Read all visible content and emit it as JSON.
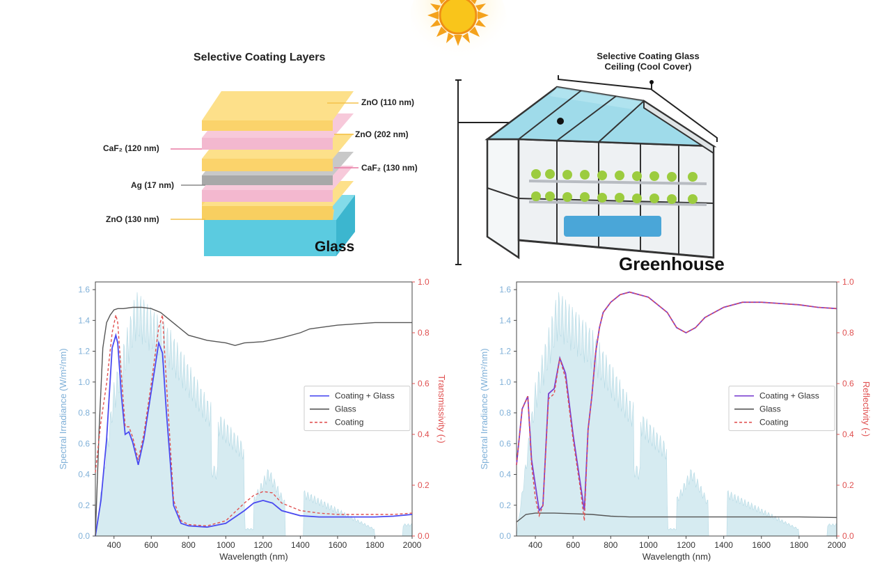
{
  "layers_diagram": {
    "title": "Selective Coating Layers",
    "substrate_label": "Glass",
    "layer_labels": {
      "zno_top": "ZnO (110 nm)",
      "zno_202": "ZnO (202 nm)",
      "caf2_120": "CaF₂ (120 nm)",
      "caf2_130": "CaF₂ (130 nm)",
      "ag": "Ag (17 nm)",
      "zno_130": "ZnO (130 nm)"
    },
    "colors": {
      "zno": "#fbd36b",
      "caf2": "#f3b8cf",
      "ag": "#b3b3b3",
      "glass": "#5bcbe0"
    }
  },
  "greenhouse": {
    "ceiling_label_line1": "Selective Coating Glass",
    "ceiling_label_line2": "Ceiling  (Cool Cover)",
    "title": "Greenhouse"
  },
  "chart_data": [
    {
      "type": "line",
      "xlabel": "Wavelength (nm)",
      "ylabel_left": "Spectral Irradiance (W/m²/nm)",
      "ylabel_right": "Transmissivity (-)",
      "xlim": [
        300,
        2000
      ],
      "ylim_left": [
        0,
        1.65
      ],
      "ylim_right": [
        0,
        1.0
      ],
      "x_ticks": [
        "400",
        "600",
        "800",
        "1000",
        "1200",
        "1400",
        "1600",
        "1800",
        "2000"
      ],
      "y_left_ticks": [
        "0.0",
        "0.2",
        "0.4",
        "0.6",
        "0.8",
        "1.0",
        "1.2",
        "1.4",
        "1.6"
      ],
      "y_right_ticks": [
        "0.0",
        "0.2",
        "0.4",
        "0.6",
        "0.8",
        "1.0"
      ],
      "legend": [
        "Coating + Glass",
        "Glass",
        "Coating"
      ],
      "legend_position": "center-right",
      "series": [
        {
          "name": "Coating + Glass",
          "color": "#4a4af0",
          "x": [
            300,
            330,
            360,
            390,
            410,
            420,
            440,
            460,
            480,
            500,
            530,
            560,
            600,
            640,
            660,
            680,
            720,
            760,
            800,
            900,
            1000,
            1100,
            1150,
            1200,
            1250,
            1300,
            1400,
            1500,
            1600,
            1700,
            1800,
            1900,
            2000
          ],
          "y": [
            0.0,
            0.14,
            0.38,
            0.74,
            0.79,
            0.76,
            0.55,
            0.4,
            0.41,
            0.37,
            0.28,
            0.38,
            0.57,
            0.76,
            0.72,
            0.5,
            0.12,
            0.05,
            0.04,
            0.035,
            0.05,
            0.1,
            0.13,
            0.14,
            0.13,
            0.1,
            0.08,
            0.075,
            0.075,
            0.075,
            0.075,
            0.078,
            0.085
          ]
        },
        {
          "name": "Glass",
          "color": "#555555",
          "x": [
            300,
            320,
            340,
            360,
            380,
            400,
            420,
            450,
            500,
            550,
            600,
            650,
            700,
            800,
            900,
            1000,
            1050,
            1100,
            1200,
            1300,
            1400,
            1450,
            1500,
            1600,
            1700,
            1800,
            1900,
            2000
          ],
          "y": [
            0.0,
            0.42,
            0.74,
            0.84,
            0.87,
            0.89,
            0.895,
            0.895,
            0.9,
            0.9,
            0.895,
            0.88,
            0.85,
            0.79,
            0.77,
            0.76,
            0.75,
            0.76,
            0.765,
            0.78,
            0.8,
            0.815,
            0.82,
            0.83,
            0.835,
            0.84,
            0.84,
            0.84
          ]
        },
        {
          "name": "Coating",
          "color": "#e05050",
          "x": [
            300,
            330,
            360,
            390,
            410,
            420,
            440,
            460,
            480,
            500,
            530,
            560,
            600,
            640,
            660,
            680,
            720,
            760,
            800,
            900,
            1000,
            1100,
            1150,
            1200,
            1250,
            1300,
            1400,
            1500,
            1600,
            1700,
            1800,
            1900,
            2000
          ],
          "y": [
            0.25,
            0.45,
            0.6,
            0.8,
            0.87,
            0.84,
            0.63,
            0.43,
            0.43,
            0.39,
            0.3,
            0.4,
            0.6,
            0.82,
            0.87,
            0.62,
            0.14,
            0.06,
            0.045,
            0.04,
            0.06,
            0.13,
            0.16,
            0.175,
            0.17,
            0.13,
            0.1,
            0.09,
            0.085,
            0.085,
            0.085,
            0.085,
            0.09
          ]
        }
      ]
    },
    {
      "type": "line",
      "xlabel": "Wavelength (nm)",
      "ylabel_left": "Spectral Irradiance (W/m²/nm)",
      "ylabel_right": "Reflectivity (-)",
      "xlim": [
        300,
        2000
      ],
      "ylim_left": [
        0,
        1.65
      ],
      "ylim_right": [
        0,
        1.0
      ],
      "x_ticks": [
        "400",
        "600",
        "800",
        "1000",
        "1200",
        "1400",
        "1600",
        "1800",
        "2000"
      ],
      "y_left_ticks": [
        "0.0",
        "0.2",
        "0.4",
        "0.6",
        "0.8",
        "1.0",
        "1.2",
        "1.4",
        "1.6"
      ],
      "y_right_ticks": [
        "0.0",
        "0.2",
        "0.4",
        "0.6",
        "0.8",
        "1.0"
      ],
      "legend": [
        "Coating + Glass",
        "Glass",
        "Coating"
      ],
      "legend_position": "center-right",
      "series": [
        {
          "name": "Coating + Glass",
          "color": "#7a3fd0",
          "x": [
            300,
            330,
            360,
            380,
            400,
            420,
            440,
            470,
            500,
            530,
            560,
            600,
            640,
            660,
            680,
            700,
            720,
            740,
            760,
            800,
            850,
            900,
            1000,
            1100,
            1150,
            1200,
            1250,
            1300,
            1400,
            1500,
            1600,
            1700,
            1800,
            1900,
            2000
          ],
          "y": [
            0.28,
            0.5,
            0.55,
            0.3,
            0.2,
            0.1,
            0.12,
            0.56,
            0.58,
            0.7,
            0.64,
            0.4,
            0.2,
            0.1,
            0.42,
            0.55,
            0.72,
            0.82,
            0.88,
            0.92,
            0.95,
            0.96,
            0.94,
            0.88,
            0.82,
            0.8,
            0.82,
            0.86,
            0.9,
            0.92,
            0.92,
            0.915,
            0.91,
            0.9,
            0.895
          ]
        },
        {
          "name": "Glass",
          "color": "#555555",
          "x": [
            300,
            350,
            400,
            450,
            500,
            600,
            700,
            800,
            900,
            1000,
            1200,
            1400,
            1600,
            1800,
            2000
          ],
          "y": [
            0.055,
            0.085,
            0.09,
            0.09,
            0.09,
            0.088,
            0.085,
            0.078,
            0.075,
            0.075,
            0.075,
            0.075,
            0.075,
            0.075,
            0.073
          ]
        },
        {
          "name": "Coating",
          "color": "#e05050",
          "x": [
            300,
            330,
            360,
            380,
            400,
            420,
            440,
            470,
            500,
            530,
            560,
            600,
            640,
            660,
            680,
            700,
            720,
            740,
            760,
            800,
            850,
            900,
            1000,
            1100,
            1150,
            1200,
            1250,
            1300,
            1400,
            1500,
            1600,
            1700,
            1800,
            1900,
            2000
          ],
          "y": [
            0.28,
            0.5,
            0.55,
            0.28,
            0.15,
            0.08,
            0.12,
            0.54,
            0.56,
            0.7,
            0.62,
            0.38,
            0.18,
            0.06,
            0.42,
            0.55,
            0.72,
            0.82,
            0.88,
            0.92,
            0.95,
            0.96,
            0.94,
            0.88,
            0.82,
            0.8,
            0.82,
            0.86,
            0.9,
            0.92,
            0.92,
            0.915,
            0.91,
            0.9,
            0.895
          ]
        }
      ]
    }
  ]
}
